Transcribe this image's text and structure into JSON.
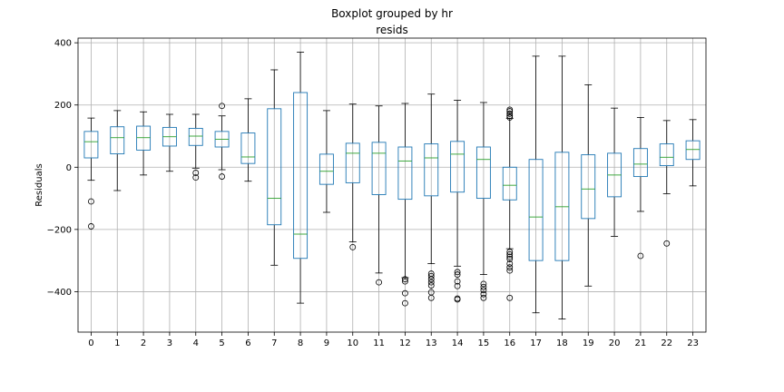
{
  "chart_data": {
    "type": "box",
    "suptitle": "Boxplot grouped by hr",
    "title": "resids",
    "xlabel": "",
    "ylabel": "Residuals",
    "grid": true,
    "ylim": [
      -530,
      415
    ],
    "yticks": [
      -400,
      -200,
      0,
      200,
      400
    ],
    "categories": [
      "0",
      "1",
      "2",
      "3",
      "4",
      "5",
      "6",
      "7",
      "8",
      "9",
      "10",
      "11",
      "12",
      "13",
      "14",
      "15",
      "16",
      "17",
      "18",
      "19",
      "20",
      "21",
      "22",
      "23"
    ],
    "colors": {
      "box": "#1f77b4",
      "median": "#2ca02c",
      "whisker": "#000000",
      "grid": "#b0b0b0"
    },
    "boxes": [
      {
        "wlo": -42,
        "q1": 30,
        "med": 82,
        "q3": 115,
        "whi": 158,
        "fliers": [
          -110,
          -190
        ]
      },
      {
        "wlo": -75,
        "q1": 43,
        "med": 95,
        "q3": 130,
        "whi": 182,
        "fliers": []
      },
      {
        "wlo": -25,
        "q1": 55,
        "med": 95,
        "q3": 132,
        "whi": 178,
        "fliers": []
      },
      {
        "wlo": -13,
        "q1": 68,
        "med": 98,
        "q3": 128,
        "whi": 170,
        "fliers": []
      },
      {
        "wlo": -3,
        "q1": 70,
        "med": 100,
        "q3": 125,
        "whi": 170,
        "fliers": [
          -18,
          -33
        ]
      },
      {
        "wlo": -8,
        "q1": 65,
        "med": 90,
        "q3": 115,
        "whi": 165,
        "fliers": [
          197,
          -30
        ]
      },
      {
        "wlo": -45,
        "q1": 12,
        "med": 33,
        "q3": 110,
        "whi": 220,
        "fliers": []
      },
      {
        "wlo": -315,
        "q1": -185,
        "med": -100,
        "q3": 188,
        "whi": 313,
        "fliers": []
      },
      {
        "wlo": -437,
        "q1": -293,
        "med": -215,
        "q3": 240,
        "whi": 370,
        "fliers": []
      },
      {
        "wlo": -145,
        "q1": -55,
        "med": -13,
        "q3": 42,
        "whi": 182,
        "fliers": []
      },
      {
        "wlo": -240,
        "q1": -50,
        "med": 45,
        "q3": 77,
        "whi": 203,
        "fliers": [
          -257
        ]
      },
      {
        "wlo": -340,
        "q1": -88,
        "med": 45,
        "q3": 80,
        "whi": 197,
        "fliers": [
          -370
        ]
      },
      {
        "wlo": -355,
        "q1": -103,
        "med": 20,
        "q3": 65,
        "whi": 205,
        "fliers": [
          -360,
          -367,
          -405,
          -437
        ]
      },
      {
        "wlo": -310,
        "q1": -92,
        "med": 30,
        "q3": 75,
        "whi": 235,
        "fliers": [
          -342,
          -350,
          -360,
          -370,
          -380,
          -402,
          -420
        ]
      },
      {
        "wlo": -318,
        "q1": -80,
        "med": 42,
        "q3": 83,
        "whi": 215,
        "fliers": [
          -337,
          -345,
          -367,
          -382,
          -422,
          -425
        ]
      },
      {
        "wlo": -345,
        "q1": -100,
        "med": 25,
        "q3": 65,
        "whi": 208,
        "fliers": [
          -375,
          -385,
          -395,
          -408,
          -420
        ]
      },
      {
        "wlo": -262,
        "q1": -105,
        "med": -58,
        "q3": 0,
        "whi": 157,
        "fliers": [
          160,
          165,
          172,
          180,
          185,
          -272,
          -280,
          -288,
          -295,
          -310,
          -322,
          -332,
          -420
        ]
      },
      {
        "wlo": -468,
        "q1": -300,
        "med": -160,
        "q3": 25,
        "whi": 357,
        "fliers": []
      },
      {
        "wlo": -488,
        "q1": -300,
        "med": -127,
        "q3": 48,
        "whi": 357,
        "fliers": []
      },
      {
        "wlo": -382,
        "q1": -165,
        "med": -70,
        "q3": 40,
        "whi": 265,
        "fliers": []
      },
      {
        "wlo": -222,
        "q1": -95,
        "med": -25,
        "q3": 45,
        "whi": 190,
        "fliers": []
      },
      {
        "wlo": -142,
        "q1": -30,
        "med": 10,
        "q3": 60,
        "whi": 160,
        "fliers": [
          -285
        ]
      },
      {
        "wlo": -85,
        "q1": 5,
        "med": 32,
        "q3": 75,
        "whi": 150,
        "fliers": [
          -245
        ]
      },
      {
        "wlo": -60,
        "q1": 25,
        "med": 57,
        "q3": 85,
        "whi": 153,
        "fliers": []
      }
    ]
  }
}
